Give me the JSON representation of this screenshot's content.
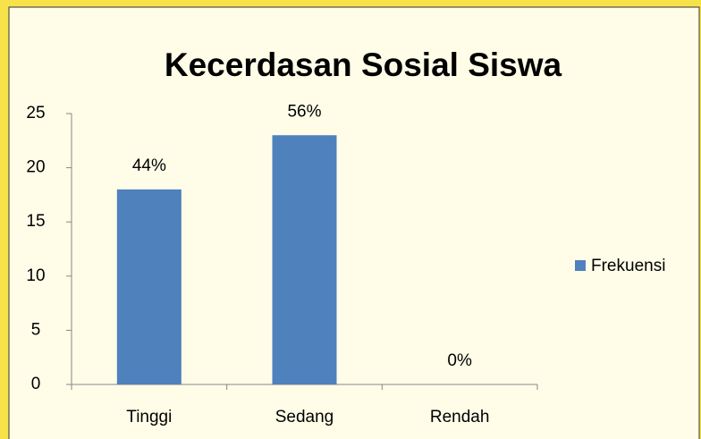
{
  "chart_data": {
    "type": "bar",
    "title": "Kecerdasan Sosial Siswa",
    "categories": [
      "Tinggi",
      "Sedang",
      "Rendah"
    ],
    "series": [
      {
        "name": "Frekuensi",
        "color": "#4f81bd",
        "values": [
          18,
          23,
          0
        ]
      }
    ],
    "data_labels": [
      "44%",
      "56%",
      "0%"
    ],
    "ylim": [
      0,
      25
    ],
    "yticks": [
      0,
      5,
      10,
      15,
      20,
      25
    ],
    "grid": false,
    "legend": "right"
  }
}
